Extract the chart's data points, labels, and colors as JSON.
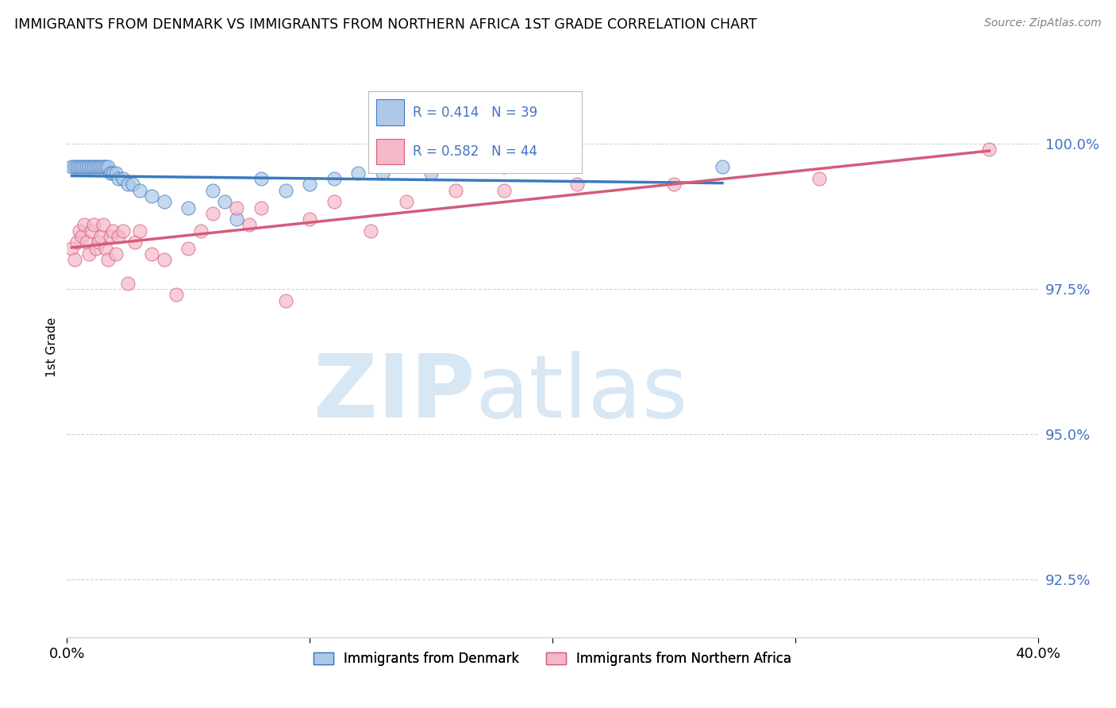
{
  "title": "IMMIGRANTS FROM DENMARK VS IMMIGRANTS FROM NORTHERN AFRICA 1ST GRADE CORRELATION CHART",
  "source": "Source: ZipAtlas.com",
  "ylabel": "1st Grade",
  "xlim": [
    0.0,
    40.0
  ],
  "ylim": [
    91.5,
    101.5
  ],
  "ytick_values": [
    92.5,
    95.0,
    97.5,
    100.0
  ],
  "color_denmark": "#aec8e8",
  "color_nafrica": "#f4b8c8",
  "line_color_denmark": "#3a7abf",
  "line_color_nafrica": "#d45c7a",
  "denmark_x": [
    0.2,
    0.3,
    0.4,
    0.5,
    0.6,
    0.7,
    0.8,
    0.9,
    1.0,
    1.1,
    1.2,
    1.3,
    1.4,
    1.5,
    1.6,
    1.7,
    1.8,
    1.9,
    2.0,
    2.1,
    2.3,
    2.5,
    2.7,
    3.0,
    3.5,
    4.0,
    5.0,
    6.0,
    6.5,
    7.0,
    8.0,
    9.0,
    10.0,
    11.0,
    12.0,
    13.0,
    15.0,
    18.0,
    27.0
  ],
  "denmark_y": [
    99.6,
    99.6,
    99.6,
    99.6,
    99.6,
    99.6,
    99.6,
    99.6,
    99.6,
    99.6,
    99.6,
    99.6,
    99.6,
    99.6,
    99.6,
    99.6,
    99.5,
    99.5,
    99.5,
    99.4,
    99.4,
    99.3,
    99.3,
    99.2,
    99.1,
    99.0,
    98.9,
    99.2,
    99.0,
    98.7,
    99.4,
    99.2,
    99.3,
    99.4,
    99.5,
    99.5,
    99.5,
    99.6,
    99.6
  ],
  "nafrica_x": [
    0.2,
    0.3,
    0.4,
    0.5,
    0.6,
    0.7,
    0.8,
    0.9,
    1.0,
    1.1,
    1.2,
    1.3,
    1.4,
    1.5,
    1.6,
    1.7,
    1.8,
    1.9,
    2.0,
    2.1,
    2.3,
    2.5,
    2.8,
    3.0,
    3.5,
    4.0,
    4.5,
    5.0,
    5.5,
    6.0,
    7.0,
    7.5,
    8.0,
    9.0,
    10.0,
    11.0,
    12.5,
    14.0,
    16.0,
    18.0,
    21.0,
    25.0,
    31.0,
    38.0
  ],
  "nafrica_y": [
    98.2,
    98.0,
    98.3,
    98.5,
    98.4,
    98.6,
    98.3,
    98.1,
    98.5,
    98.6,
    98.2,
    98.3,
    98.4,
    98.6,
    98.2,
    98.0,
    98.4,
    98.5,
    98.1,
    98.4,
    98.5,
    97.6,
    98.3,
    98.5,
    98.1,
    98.0,
    97.4,
    98.2,
    98.5,
    98.8,
    98.9,
    98.6,
    98.9,
    97.3,
    98.7,
    99.0,
    98.5,
    99.0,
    99.2,
    99.2,
    99.3,
    99.3,
    99.4,
    99.9
  ],
  "legend_r1": "R = 0.414",
  "legend_n1": "N = 39",
  "legend_r2": "R = 0.582",
  "legend_n2": "N = 44",
  "label_denmark": "Immigrants from Denmark",
  "label_nafrica": "Immigrants from Northern Africa",
  "background_color": "#ffffff",
  "tick_color": "#4472c4",
  "grid_color": "#d0d0d0",
  "source_color": "#808080"
}
